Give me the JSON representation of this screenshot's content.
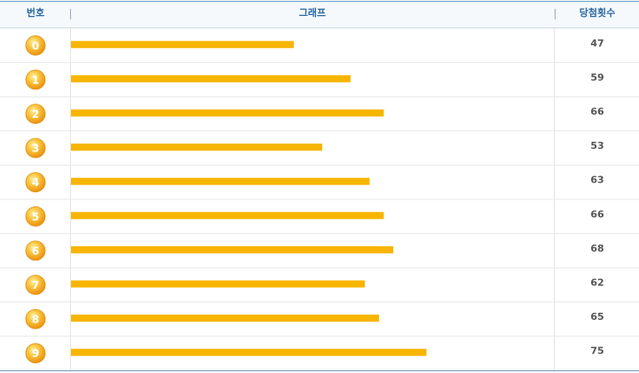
{
  "chart_data": {
    "type": "bar",
    "orientation": "horizontal",
    "columns": [
      "번호",
      "그래프",
      "당첨횟수"
    ],
    "categories": [
      "0",
      "1",
      "2",
      "3",
      "4",
      "5",
      "6",
      "7",
      "8",
      "9"
    ],
    "values": [
      47,
      59,
      66,
      53,
      63,
      66,
      68,
      62,
      65,
      75
    ],
    "color": "#f7b500",
    "xlim": [
      0,
      100
    ]
  }
}
